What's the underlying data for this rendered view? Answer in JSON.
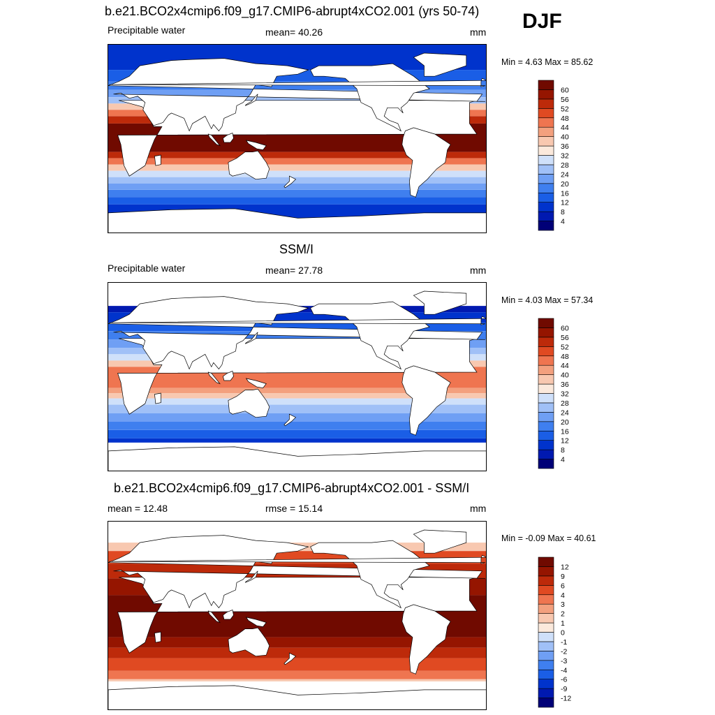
{
  "header": {
    "season": "DJF"
  },
  "panels": [
    {
      "title": "b.e21.BCO2x4cmip6.f09_g17.CMIP6-abrupt4xCO2.001 (yrs 50-74)",
      "left_label": "Precipitable water",
      "center_label": "mean=  40.26",
      "right_label": "mm",
      "minmax": "Min =   4.63 Max =  85.62"
    },
    {
      "title": "SSM/I",
      "left_label": "Precipitable water",
      "center_label": "mean=  27.78",
      "right_label": "mm",
      "minmax": "Min =   4.03 Max =  57.34"
    },
    {
      "title": "b.e21.BCO2x4cmip6.f09_g17.CMIP6-abrupt4xCO2.001 - SSM/I",
      "left_label": "mean =  12.48",
      "center_label": "rmse =  15.14",
      "right_label": "mm",
      "minmax": "Min =  -0.09 Max =  40.61"
    }
  ],
  "chart_data": [
    {
      "type": "heatmap",
      "title": "b.e21.BCO2x4cmip6.f09_g17.CMIP6-abrupt4xCO2.001 (yrs 50-74)",
      "variable": "Precipitable water",
      "units": "mm",
      "mean": 40.26,
      "min": 4.63,
      "max": 85.62,
      "colorbar_levels": [
        4,
        8,
        12,
        16,
        20,
        24,
        28,
        32,
        36,
        40,
        44,
        48,
        52,
        56,
        60
      ],
      "colorbar_colors": [
        "#000077",
        "#0019b0",
        "#0033cc",
        "#1a5ee6",
        "#3f7fef",
        "#6f9ff4",
        "#a0c0f7",
        "#cfe0fa",
        "#fbe9dc",
        "#f8c8b0",
        "#f3a07e",
        "#ef7550",
        "#e04a22",
        "#bd2a0a",
        "#951500",
        "#700a00"
      ]
    },
    {
      "type": "heatmap",
      "title": "SSM/I",
      "variable": "Precipitable water",
      "units": "mm",
      "mean": 27.78,
      "min": 4.03,
      "max": 57.34,
      "colorbar_levels": [
        4,
        8,
        12,
        16,
        20,
        24,
        28,
        32,
        36,
        40,
        44,
        48,
        52,
        56,
        60
      ],
      "colorbar_colors": [
        "#000077",
        "#0019b0",
        "#0033cc",
        "#1a5ee6",
        "#3f7fef",
        "#6f9ff4",
        "#a0c0f7",
        "#cfe0fa",
        "#fbe9dc",
        "#f8c8b0",
        "#f3a07e",
        "#ef7550",
        "#e04a22",
        "#bd2a0a",
        "#951500",
        "#700a00"
      ]
    },
    {
      "type": "heatmap",
      "title": "b.e21.BCO2x4cmip6.f09_g17.CMIP6-abrupt4xCO2.001 - SSM/I",
      "units": "mm",
      "mean": 12.48,
      "rmse": 15.14,
      "min": -0.09,
      "max": 40.61,
      "colorbar_levels": [
        -12,
        -9,
        -6,
        -4,
        -3,
        -2,
        -1,
        0,
        1,
        2,
        3,
        4,
        6,
        9,
        12
      ],
      "colorbar_colors": [
        "#000077",
        "#0019b0",
        "#0033cc",
        "#1a5ee6",
        "#3f7fef",
        "#6f9ff4",
        "#a0c0f7",
        "#cfe0fa",
        "#fbe9dc",
        "#f8c8b0",
        "#f3a07e",
        "#ef7550",
        "#e04a22",
        "#bd2a0a",
        "#951500",
        "#700a00"
      ]
    }
  ]
}
